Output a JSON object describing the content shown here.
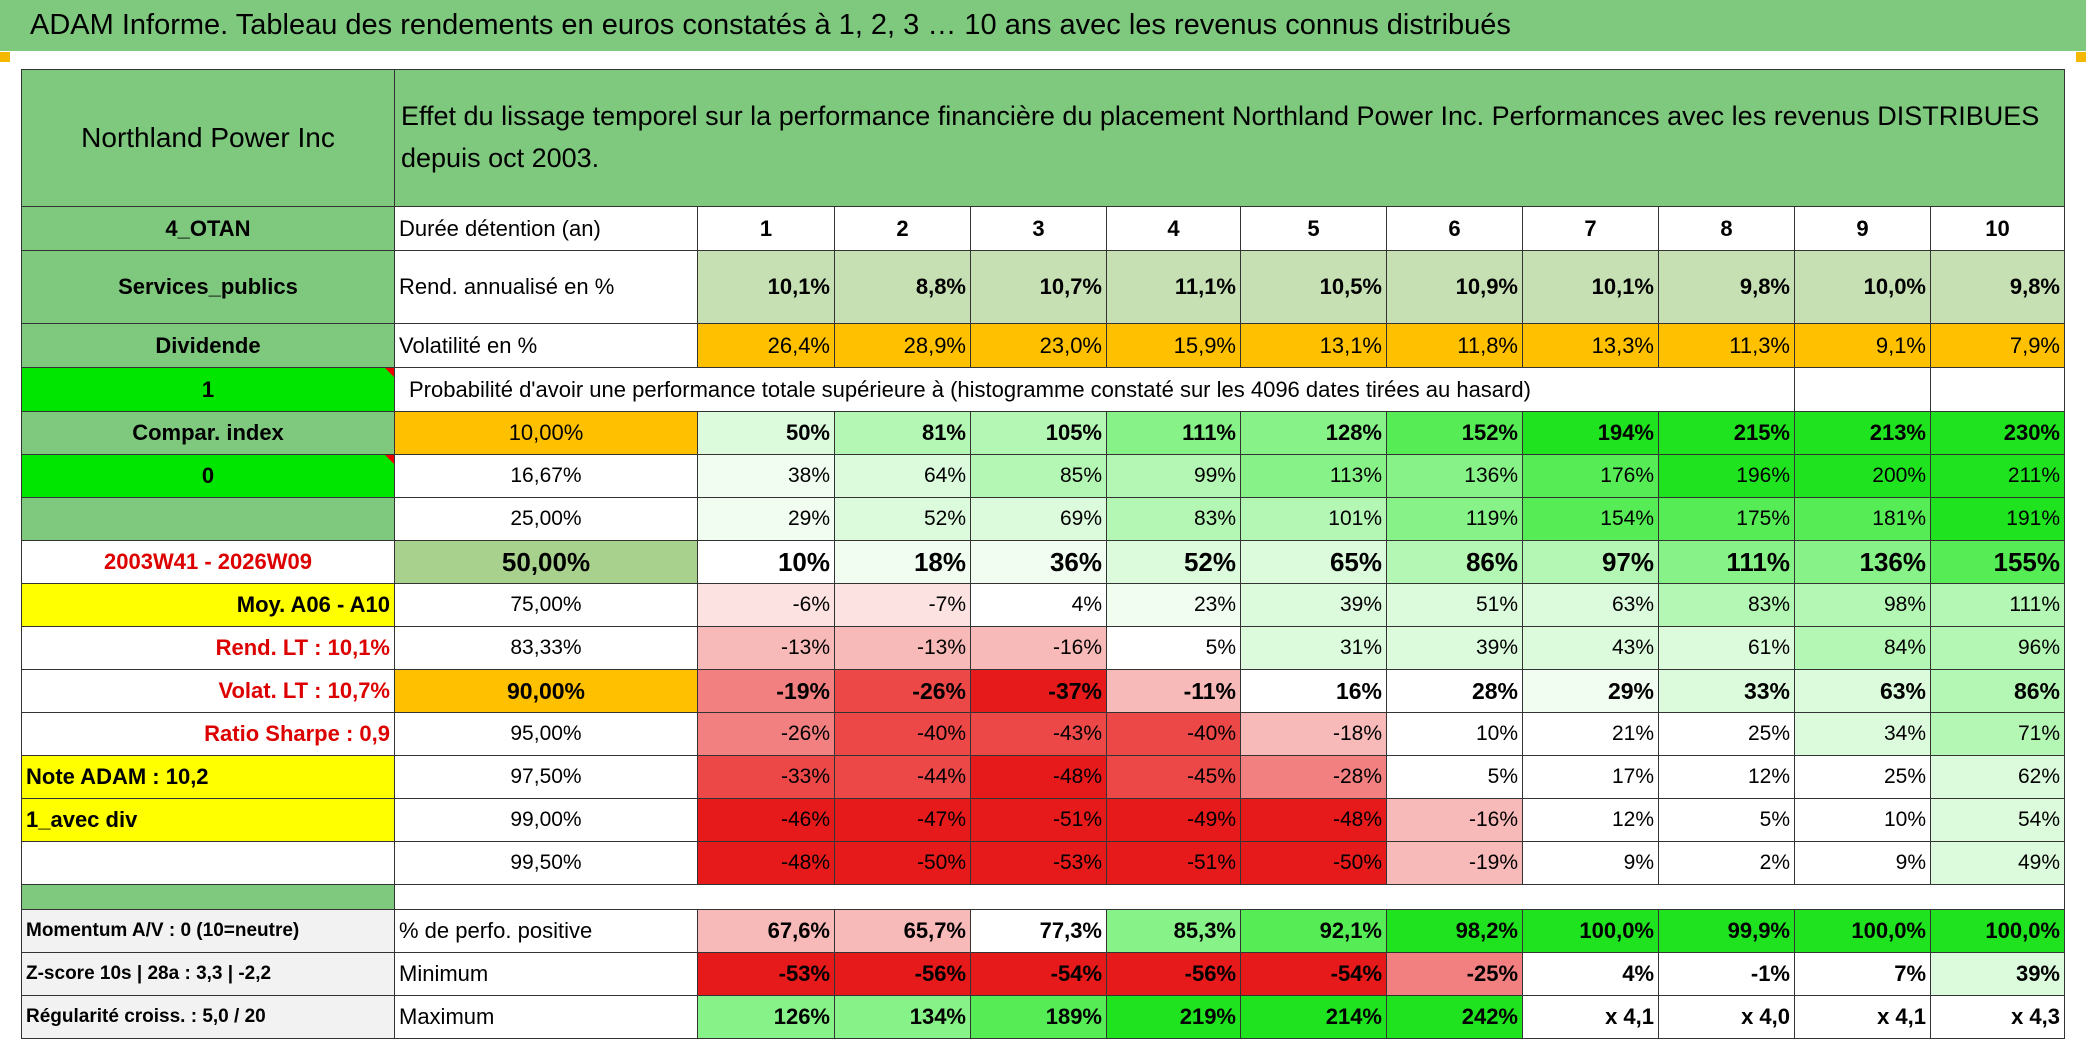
{
  "header": {
    "title": "ADAM Informe. Tableau des rendements en euros constatés à 1, 2, 3 … 10 ans avec les revenus connus distribués"
  },
  "table": {
    "name": "Northland Power Inc",
    "description": "Effet du lissage temporel sur la performance financière du placement Northland Power Inc. Performances avec les revenus DISTRIBUES depuis oct 2003.",
    "rows": [
      {
        "label": "4_OTAN",
        "cells": [
          "Durée détention (an)",
          "1",
          "2",
          "3",
          "4",
          "5",
          "6",
          "7",
          "8",
          "9",
          "10"
        ]
      },
      {
        "label": "Services_publics",
        "cells": [
          "Rend. annualisé en %",
          "10,1%",
          "8,8%",
          "10,7%",
          "11,1%",
          "10,5%",
          "10,9%",
          "10,1%",
          "9,8%",
          "10,0%",
          "9,8%"
        ]
      },
      {
        "label": "Dividende",
        "cells": [
          "Volatilité en %",
          "26,4%",
          "28,9%",
          "23,0%",
          "15,9%",
          "13,1%",
          "11,8%",
          "13,3%",
          "11,3%",
          "9,1%",
          "7,9%"
        ]
      },
      {
        "label": "1",
        "note": "Probabilité d'avoir une performance totale supérieure à (histogramme constaté sur les 4096 dates tirées au hasard)"
      },
      {
        "label": "Compar. index",
        "cells": [
          "10,00%",
          "50%",
          "81%",
          "105%",
          "111%",
          "128%",
          "152%",
          "194%",
          "215%",
          "213%",
          "230%"
        ]
      },
      {
        "label": "0",
        "cells": [
          "16,67%",
          "38%",
          "64%",
          "85%",
          "99%",
          "113%",
          "136%",
          "176%",
          "196%",
          "200%",
          "211%"
        ]
      },
      {
        "cells": [
          "25,00%",
          "29%",
          "52%",
          "69%",
          "83%",
          "101%",
          "119%",
          "154%",
          "175%",
          "181%",
          "191%"
        ]
      },
      {
        "label": "2003W41 - 2026W09",
        "cells": [
          "50,00%",
          "10%",
          "18%",
          "36%",
          "52%",
          "65%",
          "86%",
          "97%",
          "111%",
          "136%",
          "155%"
        ]
      },
      {
        "label": "Moy. A06 - A10",
        "cells": [
          "75,00%",
          "-6%",
          "-7%",
          "4%",
          "23%",
          "39%",
          "51%",
          "63%",
          "83%",
          "98%",
          "111%"
        ]
      },
      {
        "label": "Rend. LT :   10,1%",
        "cells": [
          "83,33%",
          "-13%",
          "-13%",
          "-16%",
          "5%",
          "31%",
          "39%",
          "43%",
          "61%",
          "84%",
          "96%"
        ]
      },
      {
        "label": "Volat. LT :   10,7%",
        "cells": [
          "90,00%",
          "-19%",
          "-26%",
          "-37%",
          "-11%",
          "16%",
          "28%",
          "29%",
          "33%",
          "63%",
          "86%"
        ]
      },
      {
        "label": "Ratio Sharpe :    0,9",
        "cells": [
          "95,00%",
          "-26%",
          "-40%",
          "-43%",
          "-40%",
          "-18%",
          "10%",
          "21%",
          "25%",
          "34%",
          "71%"
        ]
      },
      {
        "label": "Note ADAM : 10,2",
        "cells": [
          "97,50%",
          "-33%",
          "-44%",
          "-48%",
          "-45%",
          "-28%",
          "5%",
          "17%",
          "12%",
          "25%",
          "62%"
        ]
      },
      {
        "label": "1_avec div",
        "cells": [
          "99,00%",
          "-46%",
          "-47%",
          "-51%",
          "-49%",
          "-48%",
          "-16%",
          "12%",
          "5%",
          "10%",
          "54%"
        ]
      },
      {
        "cells": [
          "99,50%",
          "-48%",
          "-50%",
          "-53%",
          "-51%",
          "-50%",
          "-19%",
          "9%",
          "2%",
          "9%",
          "49%"
        ]
      },
      {
        "label": "Momentum A/V : 0 (10=neutre)",
        "cells": [
          "% de perfo. positive",
          "67,6%",
          "65,7%",
          "77,3%",
          "85,3%",
          "92,1%",
          "98,2%",
          "100,0%",
          "99,9%",
          "100,0%",
          "100,0%"
        ]
      },
      {
        "label": "Z-score 10s | 28a : 3,3 | -2,2",
        "cells": [
          "Minimum",
          "-53%",
          "-56%",
          "-54%",
          "-56%",
          "-54%",
          "-25%",
          "4%",
          "-1%",
          "7%",
          "39%"
        ]
      },
      {
        "label": "Régularité croiss. : 5,0 / 20",
        "cells": [
          "Maximum",
          "126%",
          "134%",
          "189%",
          "219%",
          "214%",
          "242%",
          "x 4,1",
          "x 4,0",
          "x 4,1",
          "x 4,3"
        ]
      }
    ]
  }
}
